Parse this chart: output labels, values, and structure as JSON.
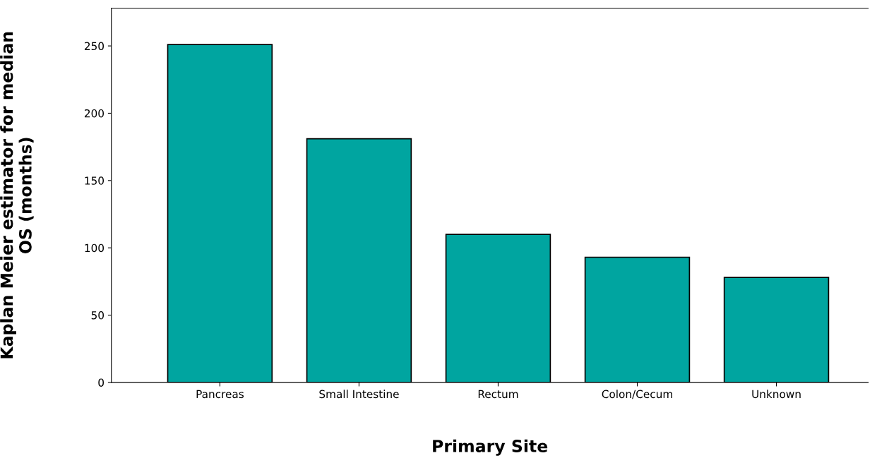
{
  "chart_data": {
    "type": "bar",
    "xlabel": "Primary Site",
    "ylabel": "Kaplan Meier estimator for median\nOS (months)",
    "categories": [
      "Pancreas",
      "Small Intestine",
      "Rectum",
      "Colon/Cecum",
      "Unknown"
    ],
    "values": [
      251,
      181,
      110,
      93,
      78
    ],
    "color": "#00a5a0",
    "ylim": [
      0,
      278
    ],
    "yticks": [
      0,
      50,
      100,
      150,
      200,
      250
    ],
    "grid": false
  }
}
